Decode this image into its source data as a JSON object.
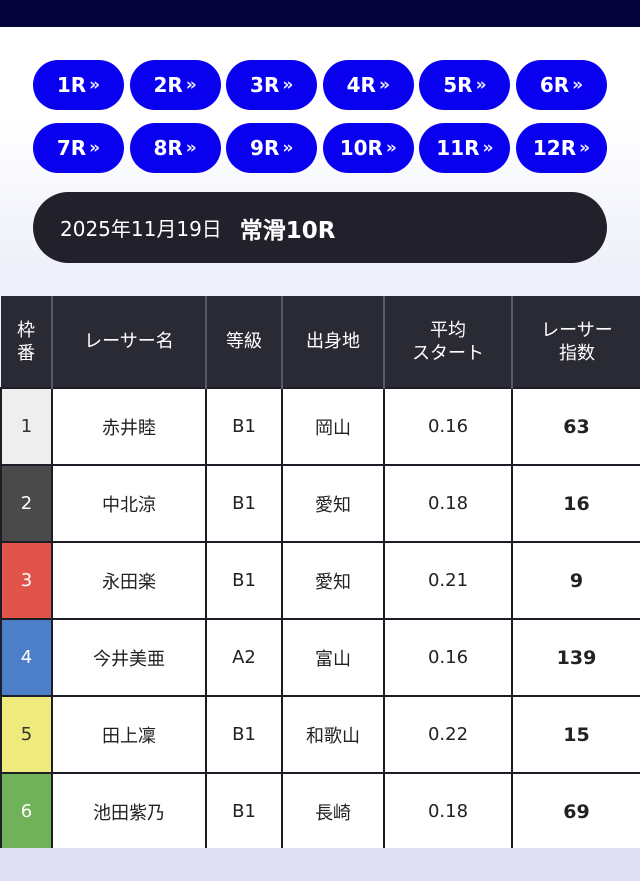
{
  "race_buttons": [
    {
      "label": "1R"
    },
    {
      "label": "2R"
    },
    {
      "label": "3R"
    },
    {
      "label": "4R"
    },
    {
      "label": "5R"
    },
    {
      "label": "6R"
    },
    {
      "label": "7R"
    },
    {
      "label": "8R"
    },
    {
      "label": "9R"
    },
    {
      "label": "10R"
    },
    {
      "label": "11R"
    },
    {
      "label": "12R"
    }
  ],
  "chevron_glyph": "»",
  "header": {
    "date": "2025年11月19日",
    "race": "常滑10R"
  },
  "table": {
    "columns": [
      "枠\n番",
      "レーサー名",
      "等級",
      "出身地",
      "平均\nスタート",
      "レーサー\n指数"
    ],
    "rows": [
      {
        "frame": "1",
        "name": "赤井睦",
        "grade": "B1",
        "origin": "岡山",
        "avg_start": "0.16",
        "index": "63",
        "frame_color": "#eeeeee"
      },
      {
        "frame": "2",
        "name": "中北涼",
        "grade": "B1",
        "origin": "愛知",
        "avg_start": "0.18",
        "index": "16",
        "frame_color": "#4a4a4a"
      },
      {
        "frame": "3",
        "name": "永田楽",
        "grade": "B1",
        "origin": "愛知",
        "avg_start": "0.21",
        "index": "9",
        "frame_color": "#e0544c"
      },
      {
        "frame": "4",
        "name": "今井美亜",
        "grade": "A2",
        "origin": "富山",
        "avg_start": "0.16",
        "index": "139",
        "frame_color": "#4d7ec8"
      },
      {
        "frame": "5",
        "name": "田上凜",
        "grade": "B1",
        "origin": "和歌山",
        "avg_start": "0.22",
        "index": "15",
        "frame_color": "#eeea7c"
      },
      {
        "frame": "6",
        "name": "池田紫乃",
        "grade": "B1",
        "origin": "長崎",
        "avg_start": "0.18",
        "index": "69",
        "frame_color": "#6fb25a"
      }
    ]
  },
  "colors": {
    "top_bar": "#04033a",
    "race_button": "#0a00f0",
    "date_bar": "#21202b",
    "table_header": "#2a2a35"
  }
}
